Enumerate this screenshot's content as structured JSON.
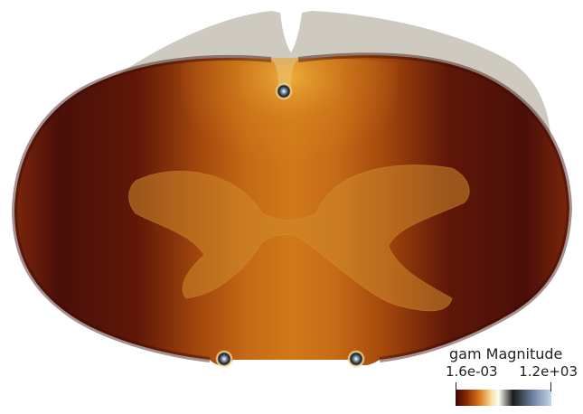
{
  "colorbar": {
    "title": "gam Magnitude",
    "min_label": "1.6e-03",
    "max_label": "1.2e+03",
    "colormap": [
      "#3a0803",
      "#8b2a05",
      "#d9791a",
      "#fbe2a8",
      "#fbfbf1",
      "#1b1b1b",
      "#6a7e9e",
      "#c6d6ea"
    ]
  },
  "colors": {
    "background": "#ffffff",
    "outer_shell": "#cfcac0"
  }
}
